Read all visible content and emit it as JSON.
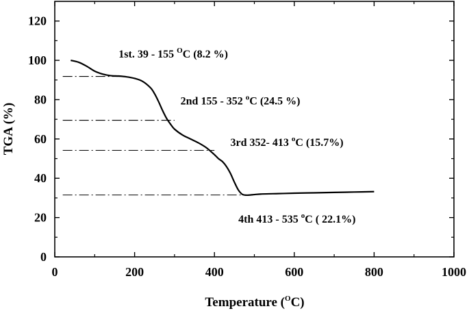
{
  "chart_data": {
    "type": "line",
    "xlabel": {
      "prefix": "Temperature (",
      "sup": "O",
      "suffix": "C)"
    },
    "ylabel": "TGA (%)",
    "xlim": [
      0,
      1000
    ],
    "ylim": [
      0,
      130
    ],
    "xticks": [
      0,
      200,
      400,
      600,
      800,
      1000
    ],
    "yticks": [
      0,
      20,
      40,
      60,
      80,
      100,
      120
    ],
    "grid": false,
    "series": [
      {
        "x": [
          40,
          60,
          80,
          100,
          120,
          140,
          160,
          180,
          200,
          220,
          240,
          250,
          260,
          270,
          280,
          290,
          300,
          320,
          340,
          360,
          380,
          400,
          410,
          420,
          430,
          440,
          450,
          460,
          470,
          480,
          490,
          500,
          520,
          560,
          600,
          650,
          700,
          750,
          800
        ],
        "y": [
          100,
          99,
          97,
          94.5,
          93,
          92.2,
          92,
          91.6,
          90.8,
          89.3,
          86,
          83,
          79,
          74.5,
          70.5,
          67.5,
          65,
          62,
          60,
          58,
          55.5,
          52,
          50,
          48.5,
          46,
          42.5,
          38,
          34,
          31.8,
          31.4,
          31.5,
          31.7,
          32,
          32.2,
          32.4,
          32.6,
          32.8,
          33,
          33.2
        ]
      }
    ],
    "reference_lines": [
      {
        "y": 91.8,
        "x_start": 20,
        "x_end": 175
      },
      {
        "y": 69.5,
        "x_start": 20,
        "x_end": 300
      },
      {
        "y": 54.2,
        "x_start": 20,
        "x_end": 400
      },
      {
        "y": 31.5,
        "x_start": 20,
        "x_end": 500
      }
    ],
    "annotations": [
      {
        "prefix": "1st. 39 - 155 ",
        "sup": "O",
        "suffix": "C (8.2 %)",
        "x": 160,
        "y": 101.5
      },
      {
        "prefix": "2nd  155 - 352 ",
        "sup": "o",
        "suffix": "C (24.5 %)",
        "x": 315,
        "y": 77.5
      },
      {
        "prefix": "3rd  352- 413 ",
        "sup": "o",
        "suffix": "C (15.7%)",
        "x": 440,
        "y": 56.5
      },
      {
        "prefix": "4th 413 - 535 ",
        "sup": "o",
        "suffix": "C ( 22.1%)",
        "x": 460,
        "y": 17.5
      }
    ]
  }
}
